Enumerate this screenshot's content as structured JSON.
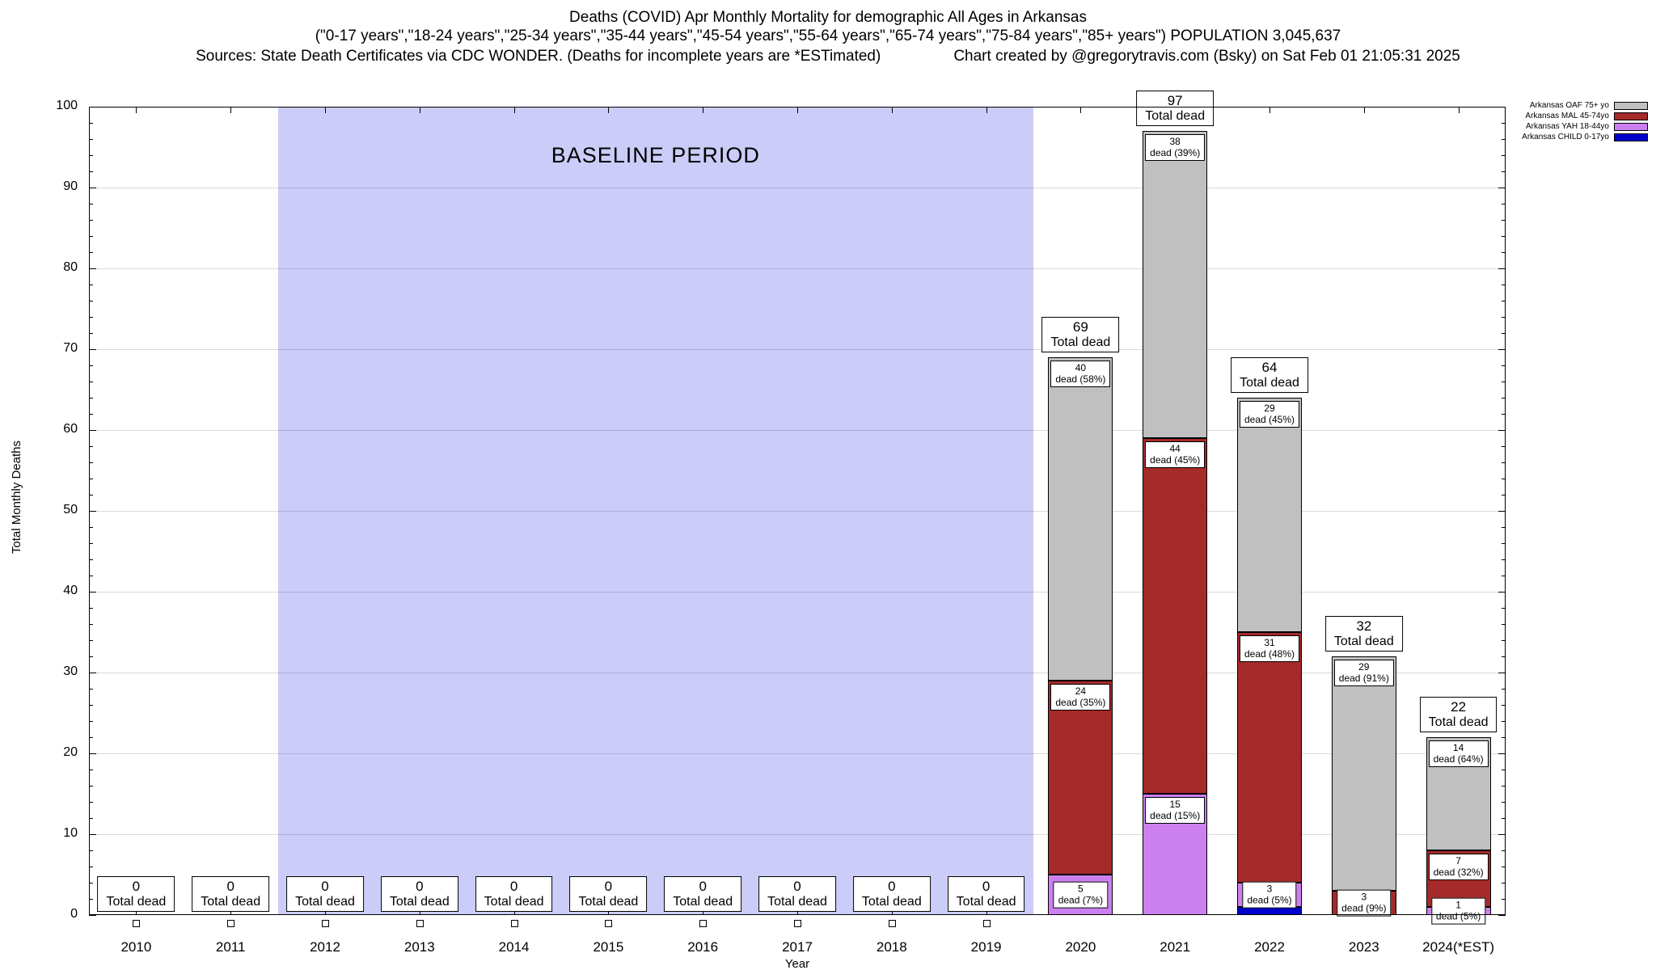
{
  "title": {
    "line1": "Deaths (COVID) Apr Monthly Mortality for demographic All Ages in Arkansas",
    "line2": "(\"0-17 years\",\"18-24 years\",\"25-34 years\",\"35-44 years\",\"45-54 years\",\"55-64 years\",\"65-74 years\",\"75-84 years\",\"85+ years\") POPULATION 3,045,637",
    "line3_left": "Sources: State Death Certificates via CDC WONDER. (Deaths for incomplete years are *ESTimated)",
    "line3_right": "Chart created by @gregorytravis.com (Bsky) on Sat Feb 01 21:05:31 2025"
  },
  "chart_data": {
    "type": "bar",
    "stacked": true,
    "title": "Deaths (COVID) Apr Monthly Mortality for demographic All Ages in Arkansas",
    "xlabel": "Year",
    "ylabel": "Total Monthly Deaths",
    "ylim": [
      0,
      100
    ],
    "ytick_step": 10,
    "minor_tick_step": 2,
    "grid": true,
    "legend_position": "top-right",
    "total_label": "Total dead",
    "categories": [
      "2010",
      "2011",
      "2012",
      "2013",
      "2014",
      "2015",
      "2016",
      "2017",
      "2018",
      "2019",
      "2020",
      "2021",
      "2022",
      "2023",
      "2024(*EST)"
    ],
    "baseline": {
      "label": "BASELINE PERIOD",
      "from_index": 2,
      "to_index": 9,
      "color": "#ccccf8"
    },
    "series_colors": {
      "CHILD": "#0000cd",
      "YAH": "#cc80f0",
      "MAL": "#a52a2a",
      "OAF": "#c0c0c0"
    },
    "legend": [
      {
        "label": "Arkansas OAF 75+ yo",
        "series": "OAF"
      },
      {
        "label": "Arkansas MAL 45-74yo",
        "series": "MAL"
      },
      {
        "label": "Arkansas YAH 18-44yo",
        "series": "YAH"
      },
      {
        "label": "Arkansas CHILD 0-17yo",
        "series": "CHILD"
      }
    ],
    "series": [
      {
        "name": "Arkansas CHILD 0-17yo",
        "key": "CHILD",
        "values": [
          0,
          0,
          0,
          0,
          0,
          0,
          0,
          0,
          0,
          0,
          0,
          0,
          1,
          0,
          0
        ]
      },
      {
        "name": "Arkansas YAH 18-44yo",
        "key": "YAH",
        "values": [
          0,
          0,
          0,
          0,
          0,
          0,
          0,
          0,
          0,
          0,
          5,
          15,
          3,
          0,
          1
        ]
      },
      {
        "name": "Arkansas MAL 45-74yo",
        "key": "MAL",
        "values": [
          0,
          0,
          0,
          0,
          0,
          0,
          0,
          0,
          0,
          0,
          24,
          44,
          31,
          3,
          7
        ]
      },
      {
        "name": "Arkansas OAF 75+ yo",
        "key": "OAF",
        "values": [
          0,
          0,
          0,
          0,
          0,
          0,
          0,
          0,
          0,
          0,
          40,
          38,
          29,
          29,
          14
        ]
      }
    ],
    "bars": [
      {
        "year": "2010",
        "total": 0,
        "segments": []
      },
      {
        "year": "2011",
        "total": 0,
        "segments": []
      },
      {
        "year": "2012",
        "total": 0,
        "segments": []
      },
      {
        "year": "2013",
        "total": 0,
        "segments": []
      },
      {
        "year": "2014",
        "total": 0,
        "segments": []
      },
      {
        "year": "2015",
        "total": 0,
        "segments": []
      },
      {
        "year": "2016",
        "total": 0,
        "segments": []
      },
      {
        "year": "2017",
        "total": 0,
        "segments": []
      },
      {
        "year": "2018",
        "total": 0,
        "segments": []
      },
      {
        "year": "2019",
        "total": 0,
        "segments": []
      },
      {
        "year": "2020",
        "total": 69,
        "segments": [
          {
            "series": "YAH",
            "value": 5,
            "pct": "7%"
          },
          {
            "series": "MAL",
            "value": 24,
            "pct": "35%"
          },
          {
            "series": "OAF",
            "value": 40,
            "pct": "58%"
          }
        ]
      },
      {
        "year": "2021",
        "total": 97,
        "segments": [
          {
            "series": "YAH",
            "value": 15,
            "pct": "15%"
          },
          {
            "series": "MAL",
            "value": 44,
            "pct": "45%"
          },
          {
            "series": "OAF",
            "value": 38,
            "pct": "39%"
          }
        ]
      },
      {
        "year": "2022",
        "total": 64,
        "segments": [
          {
            "series": "CHILD",
            "value": 1,
            "pct": null
          },
          {
            "series": "YAH",
            "value": 3,
            "pct": "5%"
          },
          {
            "series": "MAL",
            "value": 31,
            "pct": "48%"
          },
          {
            "series": "OAF",
            "value": 29,
            "pct": "45%"
          }
        ]
      },
      {
        "year": "2023",
        "total": 32,
        "segments": [
          {
            "series": "MAL",
            "value": 3,
            "pct": "9%"
          },
          {
            "series": "OAF",
            "value": 29,
            "pct": "91%"
          }
        ]
      },
      {
        "year": "2024(*EST)",
        "total": 22,
        "segments": [
          {
            "series": "YAH",
            "value": 1,
            "pct": "5%"
          },
          {
            "series": "MAL",
            "value": 7,
            "pct": "32%"
          },
          {
            "series": "OAF",
            "value": 14,
            "pct": "64%"
          }
        ]
      }
    ]
  }
}
